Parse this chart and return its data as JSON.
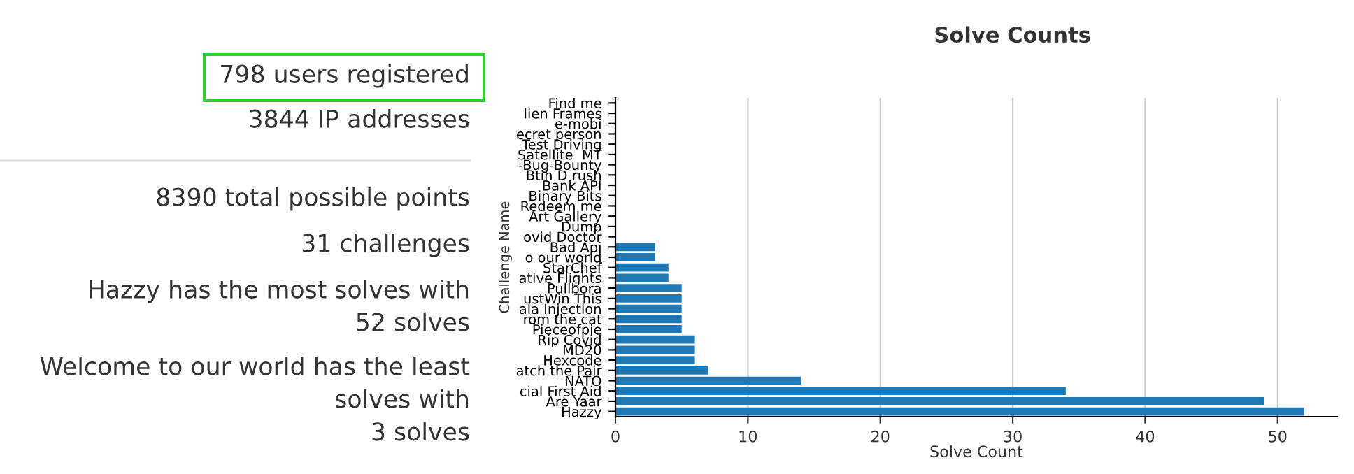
{
  "chart_data": [
    {
      "type": "other",
      "annotations": [
        "798 users registered",
        "3844 IP addresses",
        "8390 total possible points",
        "31 challenges",
        "Hazzy has the most solves with\n52 solves",
        "Welcome to our world has the least\nsolves with\n3 solves"
      ]
    },
    {
      "type": "bar",
      "orientation": "horizontal",
      "title": "Solve Counts",
      "xlabel": "Solve Count",
      "ylabel": "Challenge Name",
      "categories": [
        "Find me",
        "lien Frames",
        "e-mobi",
        "ecret person",
        "Test Driving",
        "Satellite  MT",
        "-Bug-Bounty",
        "Btih D rush",
        "Bank API",
        "Binary Bits",
        "Redeem me",
        "Art Gallery",
        "Dump",
        "ovid Doctor",
        "Bad Api",
        "o our world",
        "StarChef",
        "ative Flights",
        "Pullbora",
        "ustWin This",
        "ala Injection",
        "rom the cat",
        "Pieceofpie",
        "Rip Covid",
        "MD20",
        "Hexcode",
        "atch the Pair",
        "NATO",
        "cial First Aid",
        "Are Yaar",
        "Hazzy"
      ],
      "values": [
        0,
        0,
        0,
        0,
        0,
        0,
        0,
        0,
        0,
        0,
        0,
        0,
        0,
        0,
        3,
        3,
        4,
        4,
        5,
        5,
        5,
        5,
        5,
        6,
        6,
        6,
        7,
        14,
        34,
        49,
        52
      ],
      "color": "#1f77b4",
      "xlim": [
        0,
        54.5
      ],
      "xticks": [
        0,
        10,
        20,
        30,
        40,
        50
      ],
      "grid": "x"
    }
  ]
}
